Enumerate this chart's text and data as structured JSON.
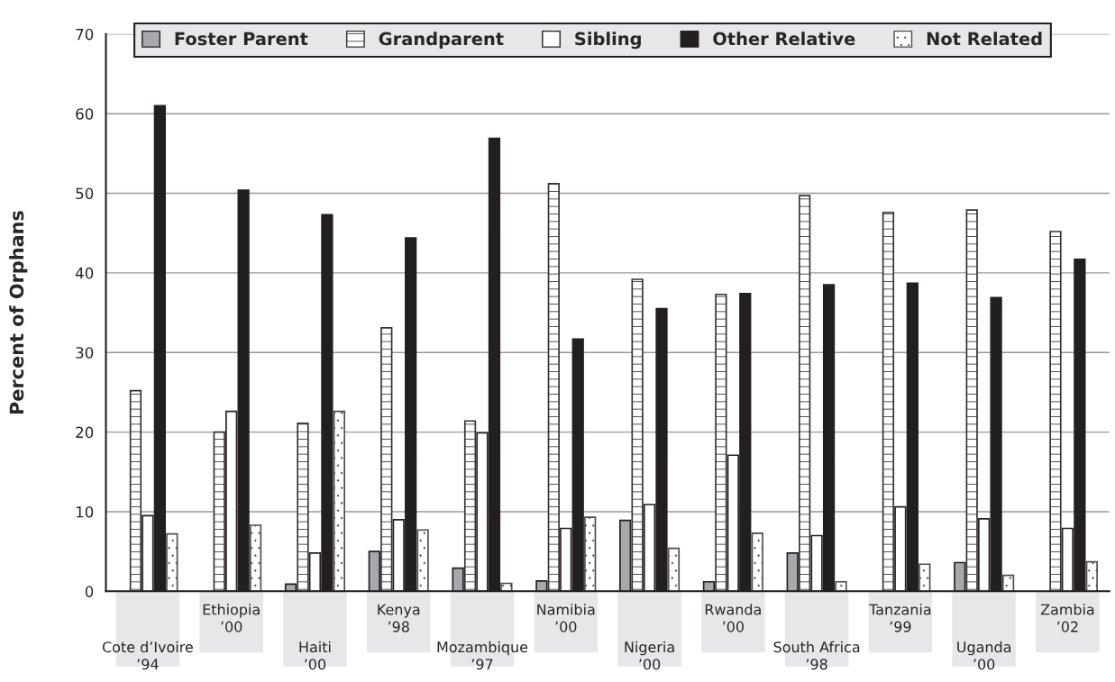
{
  "chart_data": {
    "type": "bar",
    "ylabel": "Percent of Orphans",
    "categories": [
      "Cote d’Ivoire\n’94",
      "Ethiopia\n’00",
      "Haiti\n’00",
      "Kenya\n’98",
      "Mozambique\n’97",
      "Namibia\n’00",
      "Nigeria\n’00",
      "Rwanda\n’00",
      "South Africa\n’98",
      "Tanzania\n’99",
      "Uganda\n’00",
      "Zambia\n’02"
    ],
    "series": [
      {
        "name": "Foster Parent",
        "color": "#a8a9ad",
        "values": [
          null,
          null,
          0.9,
          5.0,
          2.9,
          1.3,
          8.9,
          1.2,
          4.8,
          null,
          3.6,
          null
        ]
      },
      {
        "name": "Grandparent",
        "color": "#333333",
        "values": [
          25.2,
          20.0,
          21.1,
          33.1,
          21.4,
          51.2,
          39.2,
          37.3,
          49.7,
          47.6,
          47.9,
          45.2
        ]
      },
      {
        "name": "Sibling",
        "color": "#ffffff",
        "values": [
          9.5,
          22.6,
          4.8,
          9.0,
          19.9,
          7.9,
          10.9,
          17.1,
          7.0,
          10.6,
          9.1,
          7.9
        ]
      },
      {
        "name": "Other Relative",
        "color": "#231f20",
        "values": [
          61.0,
          50.4,
          47.3,
          44.4,
          56.9,
          31.7,
          35.5,
          37.4,
          38.5,
          38.7,
          36.9,
          41.7
        ]
      },
      {
        "name": "Not Related",
        "color": "#4d4d4d",
        "values": [
          7.2,
          8.3,
          22.6,
          7.7,
          1.0,
          9.3,
          5.4,
          7.3,
          1.2,
          3.4,
          2.0,
          3.7
        ]
      }
    ],
    "ylim": [
      0,
      70
    ],
    "yticks": [
      0,
      10,
      20,
      30,
      40,
      50,
      60,
      70
    ],
    "grid": "y",
    "legend": "top"
  }
}
